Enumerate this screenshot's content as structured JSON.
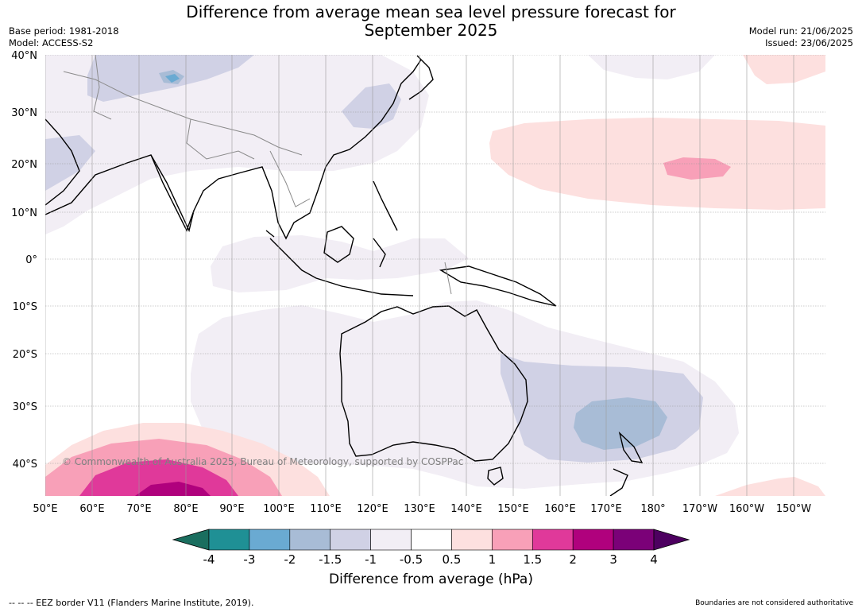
{
  "title_line1": "Difference from average mean sea level pressure forecast for",
  "title_line2": "September 2025",
  "base_period": "Base period: 1981-2018",
  "model": "Model: ACCESS-S2",
  "model_run": "Model run: 21/06/2025",
  "issued": "Issued: 23/06/2025",
  "copyright": "© Commonwealth of Australia 2025, Bureau of Meteorology, supported by COSPPac",
  "lat_labels": [
    "40°N",
    "30°N",
    "20°N",
    "10°N",
    "0°",
    "10°S",
    "20°S",
    "30°S",
    "40°S"
  ],
  "lon_labels": [
    "50°E",
    "60°E",
    "70°E",
    "80°E",
    "90°E",
    "100°E",
    "110°E",
    "120°E",
    "130°E",
    "140°E",
    "150°E",
    "160°E",
    "170°E",
    "180°",
    "170°W",
    "160°W",
    "150°W"
  ],
  "colorbar": {
    "title": "Difference from average (hPa)",
    "tick_labels": [
      "-4",
      "-3",
      "-2",
      "-1.5",
      "-1",
      "-0.5",
      "0.5",
      "1",
      "1.5",
      "2",
      "3",
      "4"
    ],
    "colors": [
      "#1a6e5f",
      "#1f9095",
      "#6aaad2",
      "#a8bcd6",
      "#d0d1e5",
      "#f2eef5",
      "#ffffff",
      "#fde0df",
      "#f8a0b8",
      "#e0399a",
      "#b0017d",
      "#7b0178",
      "#4d0060"
    ]
  },
  "footer_left": "--  --  -- EEZ border V11 (Flanders Marine Institute, 2019).",
  "footer_right": "Boundaries are not considered authoritative"
}
